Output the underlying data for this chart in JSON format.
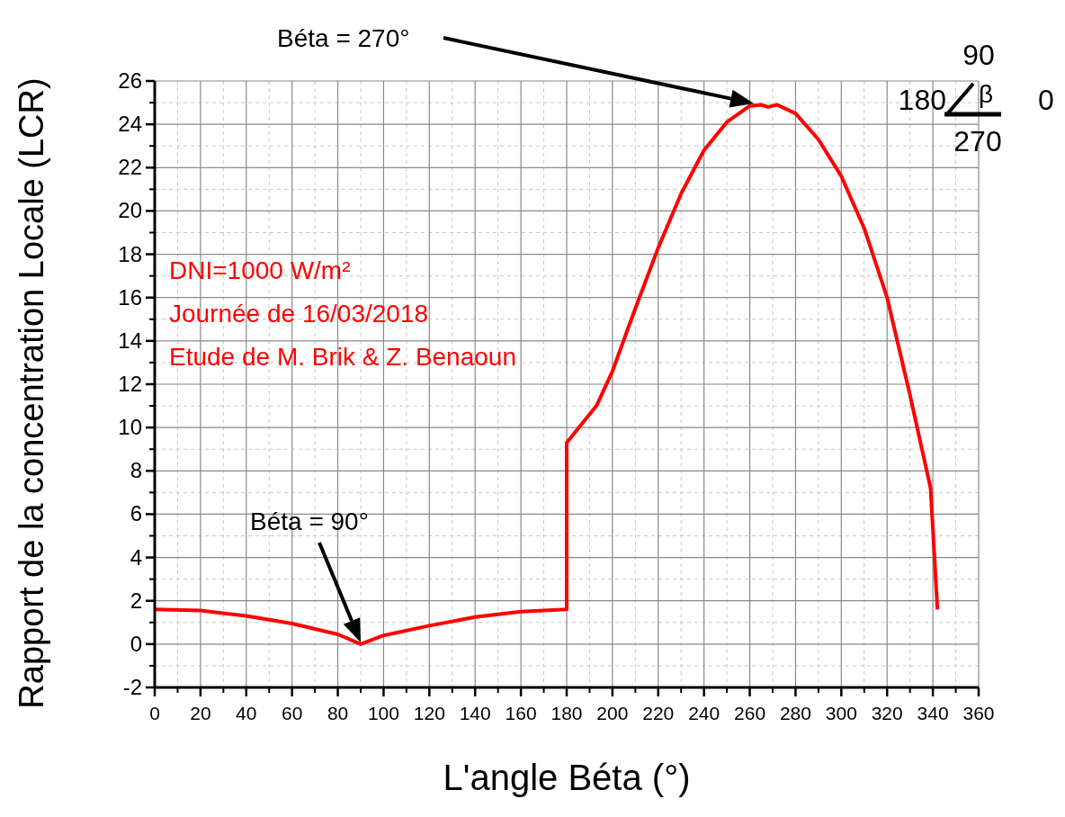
{
  "chart_data": {
    "type": "line",
    "xlabel": "L'angle Béta (°)",
    "ylabel": "Rapport de la concentration Locale (LCR)",
    "xlim": [
      0,
      360
    ],
    "ylim": [
      -2,
      26
    ],
    "xticks": [
      0,
      20,
      40,
      60,
      80,
      100,
      120,
      140,
      160,
      180,
      200,
      220,
      240,
      260,
      280,
      300,
      320,
      340,
      360
    ],
    "yticks": [
      -2,
      0,
      2,
      4,
      6,
      8,
      10,
      12,
      14,
      16,
      18,
      20,
      22,
      24,
      26
    ],
    "grid": true,
    "marker": "none",
    "line_style": "solid",
    "series": [
      {
        "color": "#ff0000",
        "x": [
          0,
          20,
          40,
          60,
          80,
          90,
          100,
          120,
          140,
          160,
          180,
          180,
          193,
          200,
          210,
          220,
          230,
          240,
          250,
          260,
          265,
          268,
          272,
          280,
          290,
          300,
          310,
          320,
          330,
          339,
          342
        ],
        "values": [
          1.6,
          1.55,
          1.3,
          0.95,
          0.45,
          0,
          0.4,
          0.85,
          1.25,
          1.5,
          1.6,
          9.3,
          11,
          12.6,
          15.5,
          18.3,
          20.8,
          22.8,
          24.1,
          24.85,
          24.9,
          24.8,
          24.9,
          24.5,
          23.3,
          21.6,
          19.2,
          16,
          11.5,
          7.2,
          1.6
        ]
      }
    ],
    "annotations": [
      "Béta = 270°",
      "Béta = 90°",
      "DNI=1000 W/m²",
      "Journée de 16/03/2018",
      "Etude de M. Brik & Z. Benaoun",
      "90",
      "180",
      "β",
      "0",
      "270"
    ]
  }
}
